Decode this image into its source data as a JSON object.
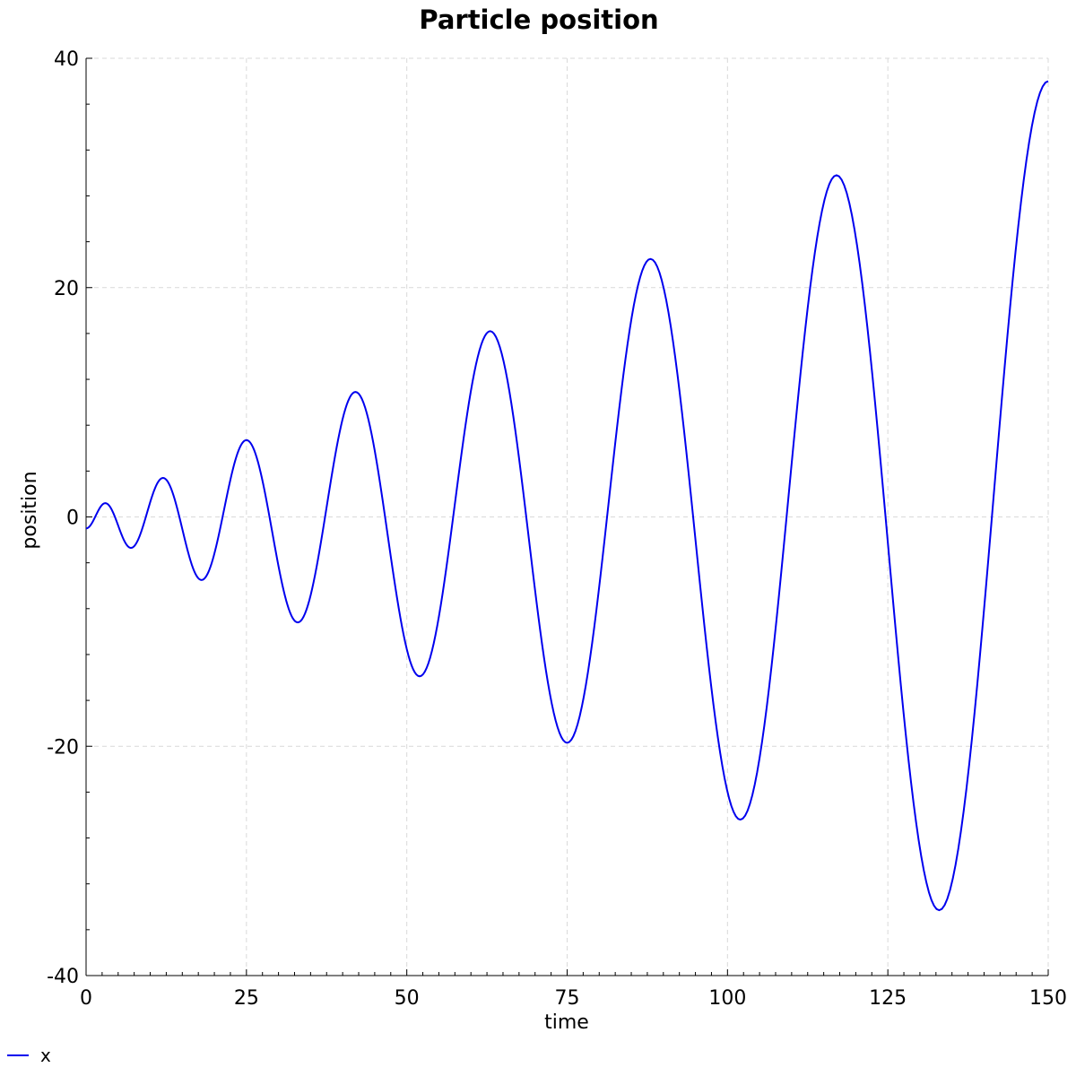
{
  "chart_data": {
    "type": "line",
    "title": "Particle position",
    "xlabel": "time",
    "ylabel": "position",
    "xlim": [
      0,
      150
    ],
    "ylim": [
      -40,
      40
    ],
    "xticks": [
      0,
      25,
      50,
      75,
      100,
      125,
      150
    ],
    "yticks": [
      -40,
      -20,
      0,
      20,
      40
    ],
    "xtick_labels": [
      "0",
      "25",
      "50",
      "75",
      "100",
      "125",
      "150"
    ],
    "ytick_labels": [
      "-40",
      "-20",
      "0",
      "20",
      "40"
    ],
    "grid": true,
    "legend_position": "bottom-left",
    "series": [
      {
        "name": "x",
        "color": "#0000ee",
        "points": [
          [
            0,
            -1.0
          ],
          [
            3,
            1.2
          ],
          [
            7,
            -2.7
          ],
          [
            12,
            3.4
          ],
          [
            18,
            -5.5
          ],
          [
            25,
            6.7
          ],
          [
            33,
            -9.2
          ],
          [
            42,
            10.9
          ],
          [
            52,
            -13.9
          ],
          [
            63,
            16.2
          ],
          [
            75,
            -19.7
          ],
          [
            88,
            22.5
          ],
          [
            102,
            -26.4
          ],
          [
            117,
            29.8
          ],
          [
            133,
            -34.3
          ],
          [
            150,
            38.0
          ]
        ]
      }
    ]
  }
}
